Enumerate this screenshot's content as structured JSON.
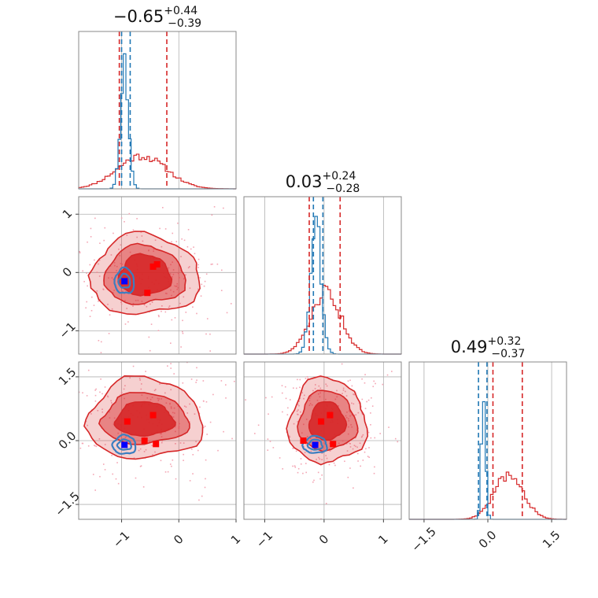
{
  "chart_data": {
    "type": "corner",
    "parameters": 3,
    "colors": {
      "posterior_a": "#d62728",
      "posterior_b": "#1f77b4",
      "reference_point": "#0000ff",
      "sample_points": "#ff0000",
      "scatter": "#f4a6b4"
    },
    "diagonal": [
      {
        "title": {
          "value": "−0.65",
          "upper": "+0.44",
          "lower": "−0.39"
        },
        "xlim": [
          -1.75,
          1
        ],
        "ticks": [
          -1,
          0,
          1
        ],
        "tick_labels": [
          "−1",
          "0",
          "1"
        ],
        "hist_red": {
          "mean": -0.65,
          "sd": 0.43,
          "peak": 0.22
        },
        "hist_blue": {
          "mean": -0.95,
          "sd": 0.07,
          "peak": 0.85
        },
        "red_lines": [
          -1.04,
          -0.21
        ],
        "blue_lines": [
          -1.0,
          -0.85
        ]
      },
      {
        "title": {
          "value": "0.03",
          "upper": "+0.24",
          "lower": "−0.28"
        },
        "xlim": [
          -1.35,
          1.3
        ],
        "ticks": [
          -1,
          0,
          1
        ],
        "tick_labels": [
          "−1",
          "0",
          "1"
        ],
        "hist_red": {
          "mean": 0.03,
          "sd": 0.25,
          "peak": 0.42
        },
        "hist_blue": {
          "mean": -0.14,
          "sd": 0.09,
          "peak": 0.88
        },
        "red_lines": [
          -0.25,
          0.27
        ],
        "blue_lines": [
          -0.18,
          -0.02
        ]
      },
      {
        "title": {
          "value": "0.49",
          "upper": "+0.32",
          "lower": "−0.37"
        },
        "xlim": [
          -1.85,
          1.85
        ],
        "ticks": [
          -1.5,
          0,
          1.5
        ],
        "tick_labels": [
          "−1.5",
          "0.0",
          "1.5"
        ],
        "hist_red": {
          "mean": 0.49,
          "sd": 0.34,
          "peak": 0.3
        },
        "hist_blue": {
          "mean": -0.1,
          "sd": 0.05,
          "peak": 0.9
        },
        "red_lines": [
          0.12,
          0.81
        ],
        "blue_lines": [
          -0.22,
          -0.02
        ]
      }
    ],
    "off_diagonal": [
      {
        "row": 1,
        "col": 0,
        "xlim": [
          -1.75,
          1
        ],
        "ylim": [
          -1.4,
          1.3
        ],
        "yticks": [
          -1,
          0,
          1
        ],
        "ytick_labels": [
          "−1",
          "0",
          "1"
        ],
        "red_center": [
          -0.6,
          -0.05
        ],
        "red_radii": [
          [
            0.45,
            0.35
          ],
          [
            0.7,
            0.5
          ],
          [
            0.95,
            0.68
          ]
        ],
        "blue_center": [
          -0.95,
          -0.15
        ],
        "blue_radii": [
          [
            0.1,
            0.12
          ],
          [
            0.17,
            0.22
          ]
        ],
        "blue_point": [
          -0.95,
          -0.15
        ],
        "red_points": [
          [
            -0.45,
            0.1
          ],
          [
            -0.38,
            0.14
          ],
          [
            -0.55,
            -0.35
          ]
        ]
      },
      {
        "row": 2,
        "col": 0,
        "xlim": [
          -1.75,
          1
        ],
        "ylim": [
          -1.85,
          1.85
        ],
        "yticks": [
          -1.5,
          0,
          1.5
        ],
        "ytick_labels": [
          "−1.5",
          "0.0",
          "1.5"
        ],
        "red_center": [
          -0.6,
          0.5
        ],
        "red_radii": [
          [
            0.5,
            0.4
          ],
          [
            0.75,
            0.6
          ],
          [
            1.0,
            0.95
          ]
        ],
        "blue_center": [
          -0.95,
          -0.1
        ],
        "blue_radii": [
          [
            0.12,
            0.12
          ],
          [
            0.2,
            0.22
          ]
        ],
        "blue_point": [
          -0.95,
          -0.1
        ],
        "red_points": [
          [
            -0.45,
            0.6
          ],
          [
            -0.9,
            0.45
          ],
          [
            -0.6,
            0.0
          ],
          [
            -0.4,
            -0.08
          ]
        ]
      },
      {
        "row": 2,
        "col": 1,
        "xlim": [
          -1.35,
          1.3
        ],
        "ylim": [
          -1.85,
          1.85
        ],
        "yticks": [
          -1.5,
          0,
          1.5
        ],
        "ytick_labels": [
          "−1.5",
          "0.0",
          "1.5"
        ],
        "red_center": [
          0.05,
          0.45
        ],
        "red_radii": [
          [
            0.3,
            0.45
          ],
          [
            0.48,
            0.7
          ],
          [
            0.65,
            1.0
          ]
        ],
        "blue_center": [
          -0.15,
          -0.1
        ],
        "blue_radii": [
          [
            0.12,
            0.12
          ],
          [
            0.2,
            0.2
          ]
        ],
        "blue_point": [
          -0.15,
          -0.1
        ],
        "red_points": [
          [
            0.1,
            0.6
          ],
          [
            -0.05,
            0.45
          ],
          [
            -0.35,
            0.0
          ],
          [
            0.15,
            -0.08
          ]
        ]
      }
    ]
  }
}
